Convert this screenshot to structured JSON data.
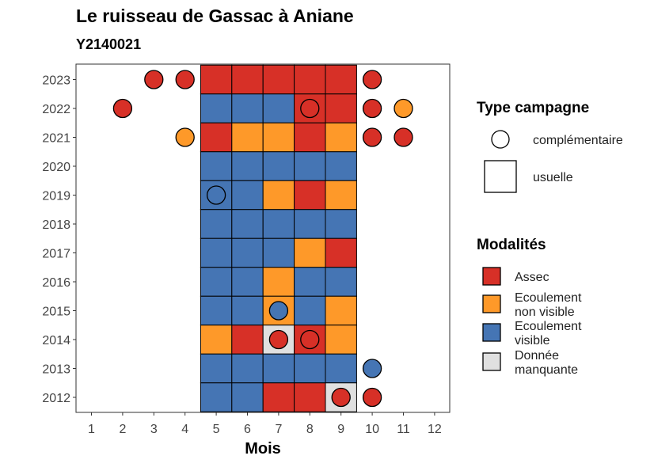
{
  "chart_data": {
    "type": "heatmap",
    "title": "Le ruisseau de Gassac à Aniane",
    "subtitle": "Y2140021",
    "xlabel": "Mois",
    "ylabel": "",
    "x_ticks": [
      "1",
      "2",
      "3",
      "4",
      "5",
      "6",
      "7",
      "8",
      "9",
      "10",
      "11",
      "12"
    ],
    "y_ticks": [
      "2012",
      "2013",
      "2014",
      "2015",
      "2016",
      "2017",
      "2018",
      "2019",
      "2020",
      "2021",
      "2022",
      "2023"
    ],
    "grid": false,
    "legend": {
      "placement": "right",
      "type_title": "Type campagne",
      "type_entries": [
        {
          "key": "complementaire",
          "label": "complémentaire",
          "shape": "circle"
        },
        {
          "key": "usuelle",
          "label": "usuelle",
          "shape": "square"
        }
      ],
      "mod_title": "Modalités",
      "mod_entries": [
        {
          "key": "assec",
          "label_lines": [
            "Assec"
          ],
          "color": "#d73027"
        },
        {
          "key": "ecnv",
          "label_lines": [
            "Ecoulement",
            "non visible"
          ],
          "color": "#fe9929"
        },
        {
          "key": "ecv",
          "label_lines": [
            "Ecoulement",
            "visible"
          ],
          "color": "#4575b4"
        },
        {
          "key": "nd",
          "label_lines": [
            "Donnée",
            "manquante"
          ],
          "color": "#e0e0e0"
        }
      ]
    },
    "usuelle": [
      {
        "year": 2023,
        "values": {
          "5": "assec",
          "6": "assec",
          "7": "assec",
          "8": "assec",
          "9": "assec"
        }
      },
      {
        "year": 2022,
        "values": {
          "5": "ecv",
          "6": "ecv",
          "7": "ecv",
          "8": "assec",
          "9": "assec"
        }
      },
      {
        "year": 2021,
        "values": {
          "5": "assec",
          "6": "ecnv",
          "7": "ecnv",
          "8": "assec",
          "9": "ecnv"
        }
      },
      {
        "year": 2020,
        "values": {
          "5": "ecv",
          "6": "ecv",
          "7": "ecv",
          "8": "ecv",
          "9": "ecv"
        }
      },
      {
        "year": 2019,
        "values": {
          "5": "ecv",
          "6": "ecv",
          "7": "ecnv",
          "8": "assec",
          "9": "ecnv"
        }
      },
      {
        "year": 2018,
        "values": {
          "5": "ecv",
          "6": "ecv",
          "7": "ecv",
          "8": "ecv",
          "9": "ecv"
        }
      },
      {
        "year": 2017,
        "values": {
          "5": "ecv",
          "6": "ecv",
          "7": "ecv",
          "8": "ecnv",
          "9": "assec"
        }
      },
      {
        "year": 2016,
        "values": {
          "5": "ecv",
          "6": "ecv",
          "7": "ecnv",
          "8": "ecv",
          "9": "ecv"
        }
      },
      {
        "year": 2015,
        "values": {
          "5": "ecv",
          "6": "ecv",
          "7": "ecnv",
          "8": "ecv",
          "9": "ecnv"
        }
      },
      {
        "year": 2014,
        "values": {
          "5": "ecnv",
          "6": "assec",
          "7": "nd",
          "8": "assec",
          "9": "ecnv"
        }
      },
      {
        "year": 2013,
        "values": {
          "5": "ecv",
          "6": "ecv",
          "7": "ecv",
          "8": "ecv",
          "9": "ecv"
        }
      },
      {
        "year": 2012,
        "values": {
          "5": "ecv",
          "6": "ecv",
          "7": "assec",
          "8": "assec",
          "9": "nd"
        }
      }
    ],
    "complementaire": [
      {
        "year": 2023,
        "month": 3,
        "value": "assec"
      },
      {
        "year": 2023,
        "month": 4,
        "value": "assec"
      },
      {
        "year": 2023,
        "month": 10,
        "value": "assec"
      },
      {
        "year": 2022,
        "month": 2,
        "value": "assec"
      },
      {
        "year": 2022,
        "month": 8,
        "value": "assec"
      },
      {
        "year": 2022,
        "month": 10,
        "value": "assec"
      },
      {
        "year": 2022,
        "month": 11,
        "value": "ecnv"
      },
      {
        "year": 2021,
        "month": 4,
        "value": "ecnv"
      },
      {
        "year": 2021,
        "month": 10,
        "value": "assec"
      },
      {
        "year": 2021,
        "month": 11,
        "value": "assec"
      },
      {
        "year": 2019,
        "month": 5,
        "value": "ecv"
      },
      {
        "year": 2015,
        "month": 7,
        "value": "ecv"
      },
      {
        "year": 2014,
        "month": 7,
        "value": "assec"
      },
      {
        "year": 2014,
        "month": 8,
        "value": "assec"
      },
      {
        "year": 2013,
        "month": 10,
        "value": "ecv"
      },
      {
        "year": 2012,
        "month": 9,
        "value": "assec"
      },
      {
        "year": 2012,
        "month": 10,
        "value": "assec"
      }
    ]
  }
}
